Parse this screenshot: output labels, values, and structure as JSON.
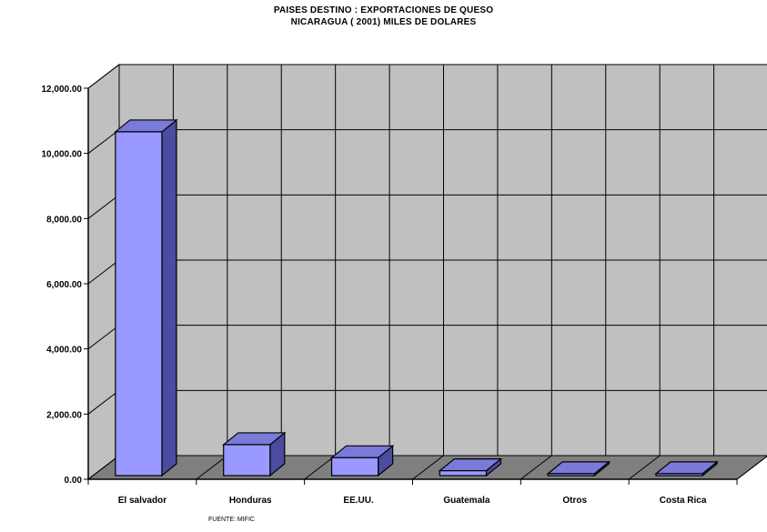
{
  "chart_data": {
    "type": "bar",
    "title_line1": "PAISES DESTINO : EXPORTACIONES DE QUESO",
    "title_line2": "NICARAGUA ( 2001) MILES DE DOLARES",
    "categories": [
      "El salvador",
      "Honduras",
      "EE.UU.",
      "Guatemala",
      "Otros",
      "Costa Rica"
    ],
    "values": [
      10550,
      950,
      550,
      150,
      60,
      60
    ],
    "y_ticks": [
      "0.00",
      "2,000.00",
      "4,000.00",
      "6,000.00",
      "8,000.00",
      "10,000.00",
      "12,000.00"
    ],
    "ylim": [
      0,
      12000
    ],
    "grid": true,
    "three_d": true,
    "source": "FUENTE: MIFIC",
    "colors": {
      "bar_front": "#9999ff",
      "bar_side": "#4b4ba0",
      "bar_top": "#7a7ad8",
      "back_wall": "#c0c0c0",
      "side_wall": "#c0c0c0",
      "floor": "#7f7f7f"
    }
  }
}
